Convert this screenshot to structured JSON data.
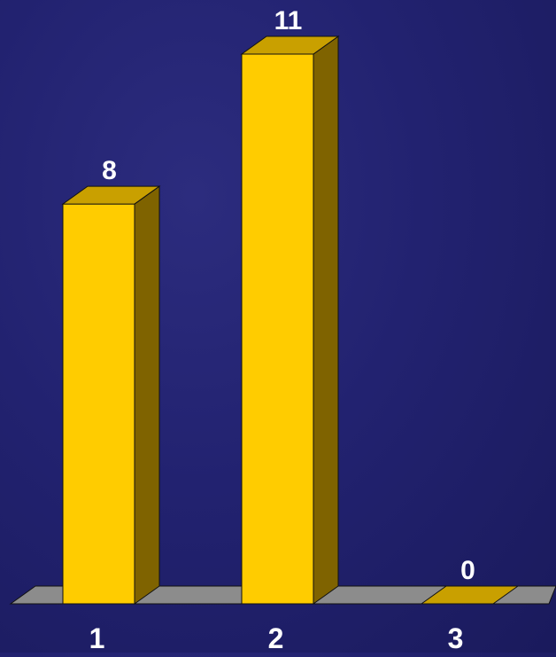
{
  "chart_data": {
    "type": "bar",
    "categories": [
      "1",
      "2",
      "3"
    ],
    "values": [
      8,
      11,
      0
    ],
    "data_labels": [
      "8",
      "11",
      "0"
    ],
    "title": "",
    "xlabel": "",
    "ylabel": "",
    "ylim": [
      0,
      11
    ],
    "grid": false,
    "legend": "none",
    "style": "3d-column",
    "colors": {
      "bar_front": "#ffcc00",
      "bar_top": "#c9a000",
      "bar_side": "#7f6300",
      "floor": "#8c8c8c",
      "background": "#222270",
      "label_text": "#ffffff"
    }
  }
}
